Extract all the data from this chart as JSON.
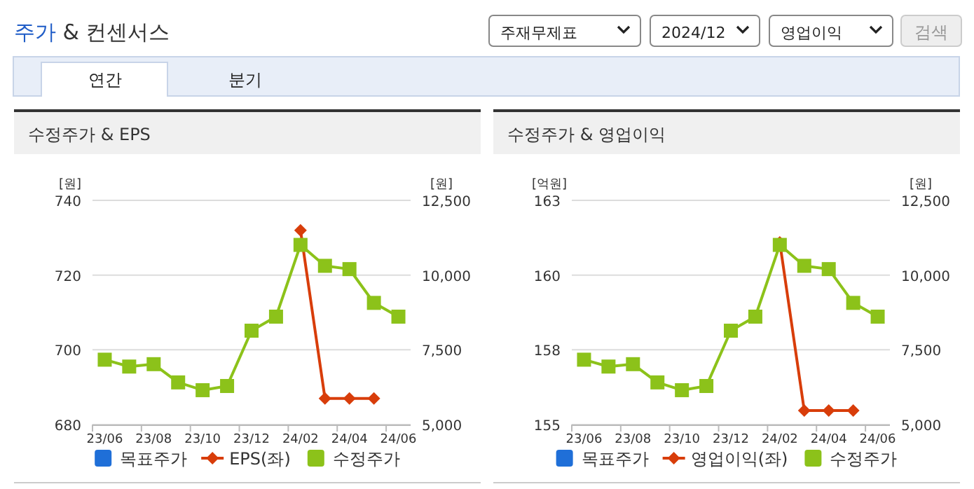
{
  "chart_data": [
    {
      "type": "other",
      "title": "주가 & 컨센서스",
      "annotations": [
        "주재무제표",
        "2024/12",
        "영업이익",
        "검색",
        "연간",
        "분기"
      ]
    },
    {
      "type": "line",
      "title": "수정주가 & EPS",
      "ylabel": "[원]",
      "y2label": "[원]",
      "categories": [
        "23/06",
        null,
        "23/08",
        null,
        "23/10",
        null,
        "23/12",
        null,
        "24/02",
        null,
        "24/04",
        null,
        "24/06"
      ],
      "ylim": [
        680,
        740
      ],
      "yticks": [
        680,
        700,
        720,
        740
      ],
      "y2lim": [
        5000,
        12500
      ],
      "y2ticks": [
        {
          "value": 5000,
          "label": "5,000"
        },
        {
          "value": 7500,
          "label": "7,500"
        },
        {
          "value": 10000,
          "label": "10,000"
        },
        {
          "value": 12500,
          "label": "12,500"
        }
      ],
      "grid": "y",
      "legend": "bottom",
      "series": [
        {
          "name": "목표주가",
          "color": "#1f6fd8",
          "marker": "square",
          "values": [
            null,
            null,
            null,
            null,
            null,
            null,
            null,
            null,
            null,
            null,
            null,
            null,
            null
          ]
        },
        {
          "name": "EPS(좌)",
          "color": "#d83d0a",
          "marker": "diamond",
          "values": [
            null,
            null,
            null,
            null,
            null,
            null,
            null,
            null,
            732,
            687,
            687,
            687,
            null
          ]
        },
        {
          "name": "수정주가",
          "color": "#8cc21a",
          "marker": "square",
          "axis": "y2",
          "values": [
            7170,
            6940,
            7020,
            6410,
            6150,
            6290,
            8140,
            8610,
            11010,
            10310,
            10200,
            9070,
            8610
          ]
        }
      ]
    },
    {
      "type": "line",
      "title": "수정주가 & 영업이익",
      "ylabel": "[억원]",
      "y2label": "[원]",
      "categories": [
        "23/06",
        null,
        "23/08",
        null,
        "23/10",
        null,
        "23/12",
        null,
        "24/02",
        null,
        "24/04",
        null,
        "24/06"
      ],
      "ylim": [
        155,
        163
      ],
      "yticks": [
        155,
        {
          "value": 157.67,
          "label": "158"
        },
        {
          "value": 160.33,
          "label": "160"
        },
        163
      ],
      "y2lim": [
        5000,
        12500
      ],
      "y2ticks": [
        {
          "value": 5000,
          "label": "5,000"
        },
        {
          "value": 7500,
          "label": "7,500"
        },
        {
          "value": 10000,
          "label": "10,000"
        },
        {
          "value": 12500,
          "label": "12,500"
        }
      ],
      "grid": "y",
      "legend": "bottom",
      "series": [
        {
          "name": "목표주가",
          "color": "#1f6fd8",
          "marker": "square",
          "values": [
            null,
            null,
            null,
            null,
            null,
            null,
            null,
            null,
            null,
            null,
            null,
            null,
            null
          ]
        },
        {
          "name": "영업이익(좌)",
          "color": "#d83d0a",
          "marker": "diamond",
          "values": [
            null,
            null,
            null,
            null,
            null,
            null,
            null,
            null,
            161.5,
            155.5,
            155.5,
            155.5,
            null
          ]
        },
        {
          "name": "수정주가",
          "color": "#8cc21a",
          "marker": "square",
          "axis": "y2",
          "values": [
            7170,
            6940,
            7020,
            6410,
            6150,
            6290,
            8140,
            8610,
            11010,
            10310,
            10200,
            9070,
            8610
          ]
        }
      ]
    }
  ]
}
